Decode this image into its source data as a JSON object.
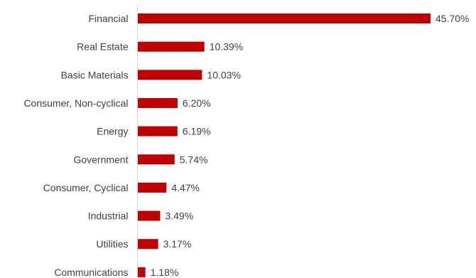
{
  "chart_data": {
    "type": "bar",
    "orientation": "horizontal",
    "categories": [
      "Financial",
      "Real Estate",
      "Basic Materials",
      "Consumer, Non-cyclical",
      "Energy",
      "Government",
      "Consumer, Cyclical",
      "Industrial",
      "Utilities",
      "Communications"
    ],
    "values": [
      45.7,
      10.39,
      10.03,
      6.2,
      6.19,
      5.74,
      4.47,
      3.49,
      3.17,
      1.18
    ],
    "value_labels": [
      "45.70%",
      "10.39%",
      "10.03%",
      "6.20%",
      "6.19%",
      "5.74%",
      "4.47%",
      "3.49%",
      "3.17%",
      "1.18%"
    ],
    "unit": "%",
    "title": "",
    "xlabel": "",
    "ylabel": "",
    "grid": false,
    "legend": "none",
    "colors": {
      "bar": "#c00000",
      "axis": "#d9d9d9",
      "text": "#404040"
    }
  }
}
